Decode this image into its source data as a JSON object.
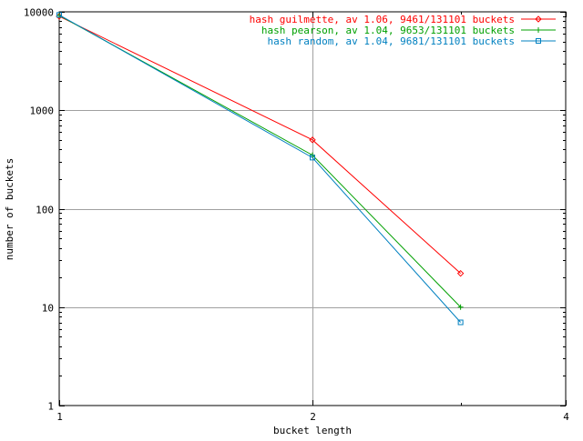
{
  "chart_data": {
    "type": "line",
    "xlabel": "bucket length",
    "ylabel": "number of buckets",
    "x_scale": "log",
    "y_scale": "log",
    "xlim": [
      1,
      4
    ],
    "ylim": [
      1,
      10000
    ],
    "x_ticks": [
      {
        "value": 1,
        "label": "1"
      },
      {
        "value": 2,
        "label": "2"
      },
      {
        "value": 4,
        "label": "4"
      }
    ],
    "y_ticks": [
      {
        "value": 1,
        "label": "1"
      },
      {
        "value": 10,
        "label": "10"
      },
      {
        "value": 100,
        "label": "100"
      },
      {
        "value": 1000,
        "label": "1000"
      },
      {
        "value": 10000,
        "label": "10000"
      }
    ],
    "grid": true,
    "legend_position": "top-right",
    "series": [
      {
        "name": "hash guilmette, av 1.06, 9461/131101 buckets",
        "color": "#ff0000",
        "marker": "diamond",
        "x": [
          1,
          2,
          3
        ],
        "y": [
          9000,
          500,
          22
        ]
      },
      {
        "name": "hash pearson, av 1.04, 9653/131101 buckets",
        "color": "#00a000",
        "marker": "plus",
        "x": [
          1,
          2,
          3
        ],
        "y": [
          9200,
          350,
          10
        ]
      },
      {
        "name": "hash random, av 1.04, 9681/131101 buckets",
        "color": "#0080c0",
        "marker": "square",
        "x": [
          1,
          2,
          3
        ],
        "y": [
          9300,
          330,
          7
        ]
      }
    ]
  }
}
